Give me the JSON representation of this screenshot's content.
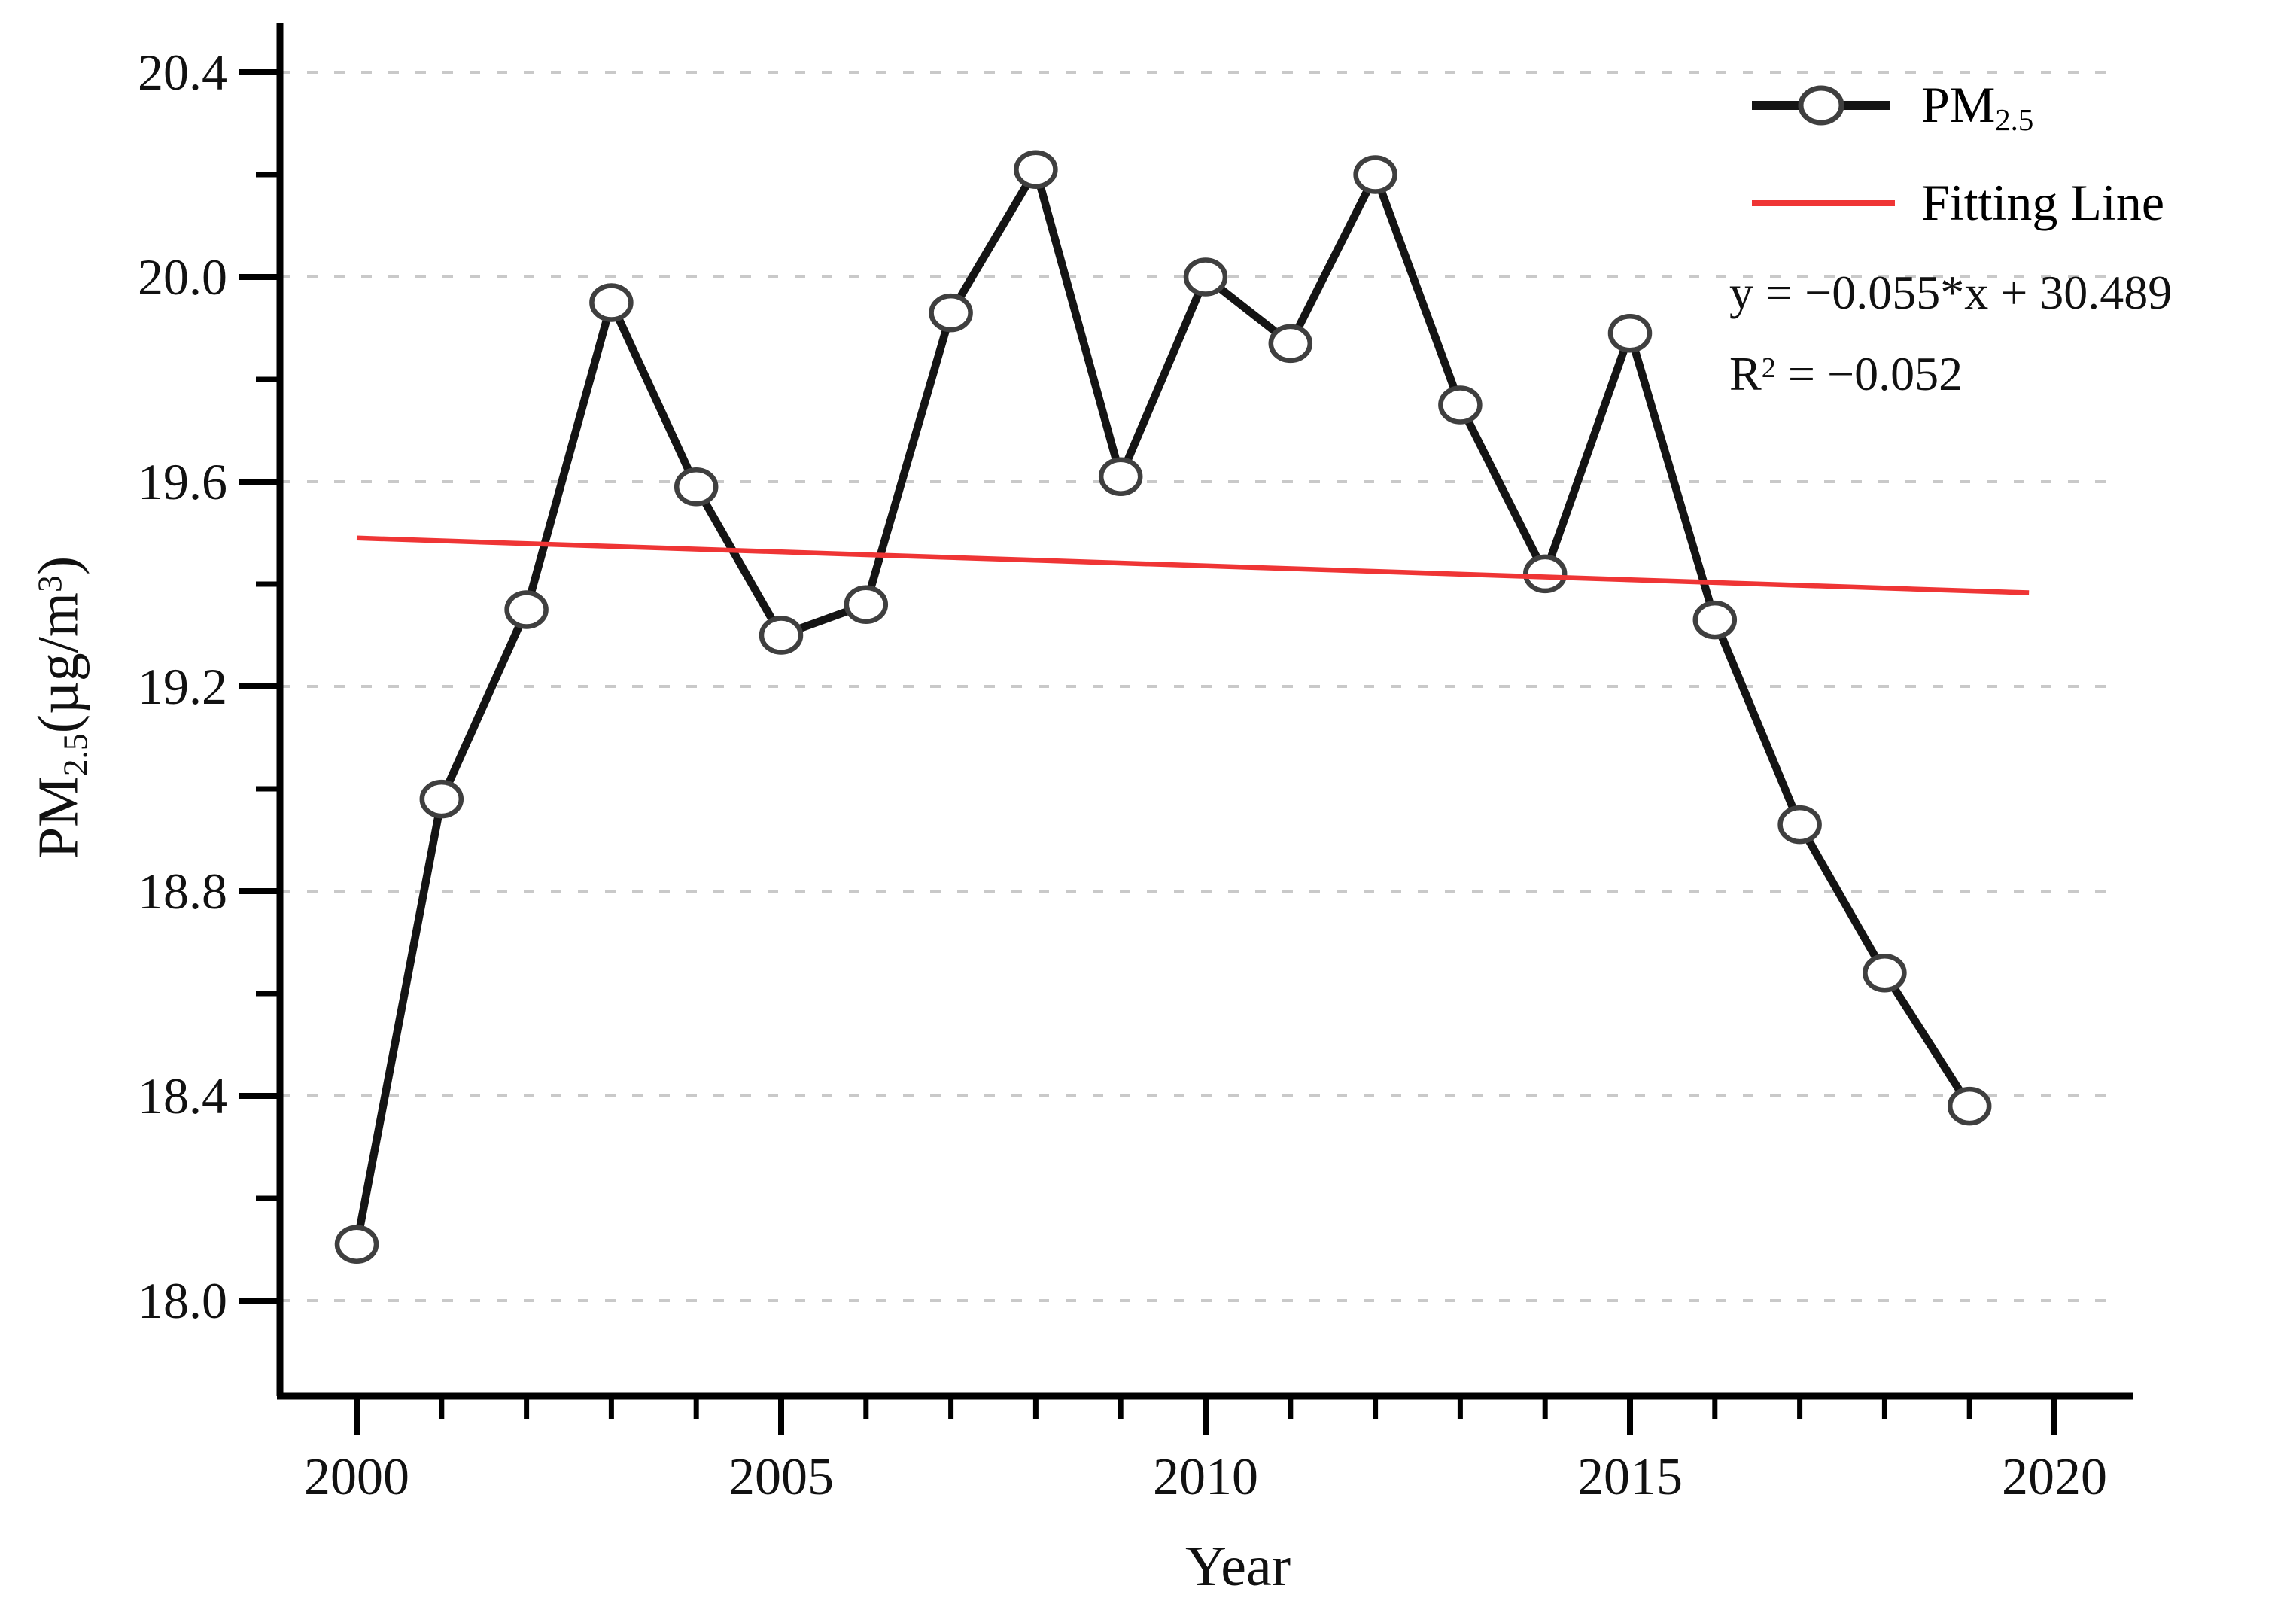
{
  "chart_data": {
    "type": "line",
    "title": "",
    "xlabel": "Year",
    "ylabel": "PM2.5(µg/m3)",
    "x": [
      2000,
      2001,
      2002,
      2003,
      2004,
      2005,
      2006,
      2007,
      2008,
      2009,
      2010,
      2011,
      2012,
      2013,
      2014,
      2015,
      2016,
      2017,
      2018,
      2019
    ],
    "series": [
      {
        "name": "PM2.5",
        "type": "line-markers",
        "marker": "open-circle",
        "color": "#141414",
        "marker_stroke": "#3f3f3f",
        "values": [
          18.11,
          18.98,
          19.35,
          19.95,
          19.59,
          19.3,
          19.36,
          19.93,
          20.21,
          19.61,
          20.0,
          19.87,
          20.2,
          19.75,
          19.42,
          19.89,
          19.33,
          18.93,
          18.64,
          18.38
        ]
      },
      {
        "name": "Fitting Line",
        "type": "fit-line",
        "color": "#ef3535",
        "x_endpoints": [
          2000,
          2019.7
        ],
        "y_endpoints": [
          19.49,
          19.383
        ]
      }
    ],
    "x_ticks_major": [
      2000,
      2005,
      2010,
      2015,
      2020
    ],
    "x_ticks_minor": [
      2001,
      2002,
      2003,
      2004,
      2006,
      2007,
      2008,
      2009,
      2011,
      2012,
      2013,
      2014,
      2016,
      2017,
      2018,
      2019
    ],
    "y_ticks_major": [
      20.4,
      20.0,
      19.6,
      19.2,
      18.8,
      18.4,
      18.0
    ],
    "y_ticks_minor": [
      20.2,
      19.8,
      19.4,
      19.0,
      18.6,
      18.2
    ],
    "y_tick_labels": [
      "20.4",
      "20.0",
      "19.6",
      "19.2",
      "18.8",
      "18.4",
      "18.0"
    ],
    "x_tick_labels": [
      "2000",
      "2005",
      "2010",
      "2015",
      "2020"
    ],
    "xlim": [
      1999.1,
      2020.95
    ],
    "ylim": [
      17.81,
      20.5
    ],
    "grid": "horizontal dotted at major y ticks",
    "grid_color": "#c9c9c9",
    "legend_position": "top-right inside"
  },
  "labels": {
    "x": "Year",
    "y_main": "PM",
    "y_sub": "2.5",
    "y_mid": "(µg/m",
    "y_sup": "3",
    "y_end": ")"
  },
  "legend": {
    "pm_main": "PM",
    "pm_sub": "2.5",
    "fit_label": "Fitting Line",
    "equation": "y = −0.055*x + 30.489",
    "r2_main": "R",
    "r2_sup": "2",
    "r2_rest": " = −0.052"
  }
}
